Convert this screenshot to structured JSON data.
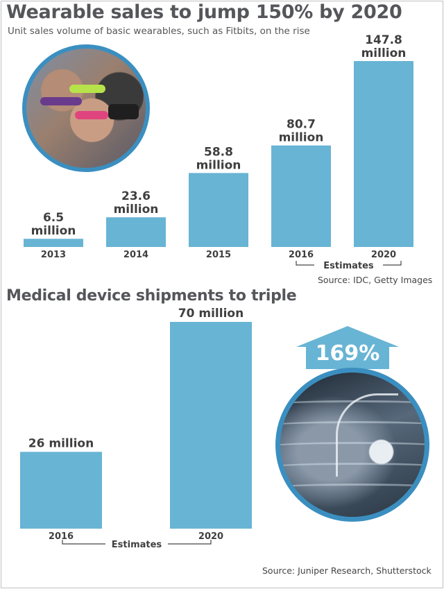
{
  "header": {
    "title": "Wearable sales to jump 150% by 2020",
    "subtitle": "Unit sales volume of basic wearables, such as Fitbits, on the rise",
    "source": "Source: IDC, Getty Images"
  },
  "section2": {
    "title": "Medical device shipments to triple",
    "source": "Source: Juniper Research, Shutterstock",
    "arrow_label": "169%"
  },
  "colors": {
    "bar": "#68b4d4",
    "arrow": "#68b4d4",
    "title": "#55565a",
    "ring": "#3b8fc0"
  },
  "icons": {
    "photo1": "fitness-tracker-photo",
    "photo2": "pacemaker-xray-photo",
    "arrow": "up-arrow-icon"
  },
  "chart_data": [
    {
      "type": "bar",
      "title": "Wearable sales to jump 150% by 2020",
      "subtitle": "Unit sales volume of basic wearables, such as Fitbits, on the rise",
      "categories": [
        "2013",
        "2014",
        "2015",
        "2016",
        "2020"
      ],
      "values": [
        6.5,
        23.6,
        58.8,
        80.7,
        147.8
      ],
      "value_labels": [
        [
          "6.5",
          "million"
        ],
        [
          "23.6",
          "million"
        ],
        [
          "58.8",
          "million"
        ],
        [
          "80.7",
          "million"
        ],
        [
          "147.8",
          "million"
        ]
      ],
      "estimates_label": "Estimates",
      "estimate_categories": [
        "2016",
        "2020"
      ],
      "ylim": [
        0,
        147.8
      ],
      "grid": false
    },
    {
      "type": "bar",
      "title": "Medical device shipments to triple",
      "categories": [
        "2016",
        "2020"
      ],
      "values": [
        26,
        70
      ],
      "value_labels": [
        "26 million",
        "70 million"
      ],
      "estimates_label": "Estimates",
      "estimate_categories": [
        "2016",
        "2020"
      ],
      "ylim": [
        0,
        70
      ],
      "grid": false,
      "annotation": "169%"
    }
  ]
}
